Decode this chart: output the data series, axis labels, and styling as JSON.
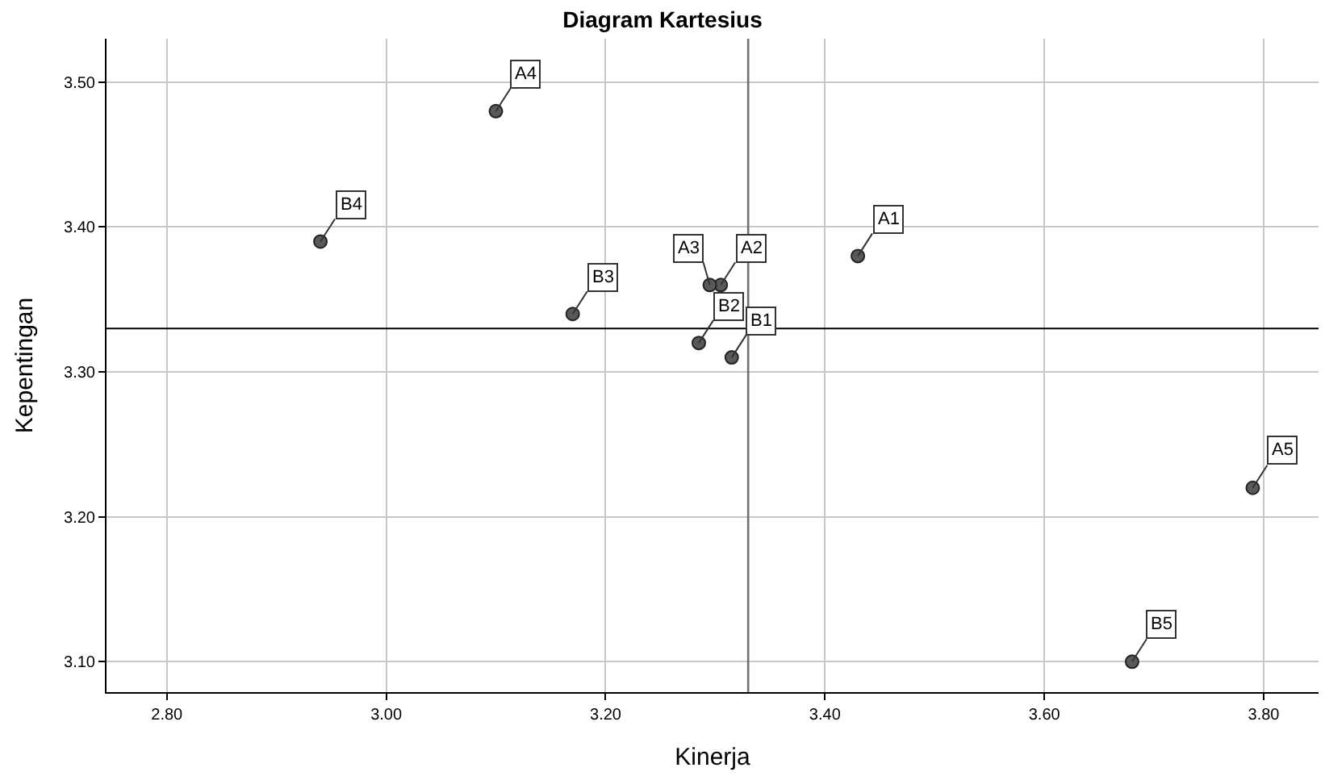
{
  "chart_data": {
    "type": "scatter",
    "title": "Diagram Kartesius",
    "xlabel": "Kinerja",
    "ylabel": "Kepentingan",
    "x": [
      3.43,
      3.305,
      3.295,
      3.1,
      3.79,
      3.315,
      3.285,
      3.17,
      2.94,
      3.68
    ],
    "series": [
      {
        "color": "#595959",
        "values": [
          3.38,
          3.36,
          3.36,
          3.48,
          3.22,
          3.31,
          3.32,
          3.34,
          3.39,
          3.1
        ]
      }
    ],
    "annotations": [
      {
        "text": "A1",
        "x": 3.43,
        "y": 3.38
      },
      {
        "text": "A2",
        "x": 3.305,
        "y": 3.36
      },
      {
        "text": "A3",
        "x": 3.295,
        "y": 3.36
      },
      {
        "text": "A4",
        "x": 3.1,
        "y": 3.48
      },
      {
        "text": "A5",
        "x": 3.79,
        "y": 3.22
      },
      {
        "text": "B1",
        "x": 3.315,
        "y": 3.31
      },
      {
        "text": "B2",
        "x": 3.285,
        "y": 3.32
      },
      {
        "text": "B3",
        "x": 3.17,
        "y": 3.34
      },
      {
        "text": "B4",
        "x": 2.94,
        "y": 3.39
      },
      {
        "text": "B5",
        "x": 3.68,
        "y": 3.1
      }
    ],
    "ref_lines": [
      {
        "axis": "x",
        "value": 3.33,
        "color": "#707070"
      },
      {
        "axis": "y",
        "value": 3.33,
        "color": "#000000"
      }
    ],
    "xlim": [
      2.745,
      3.85
    ],
    "ylim": [
      3.079,
      3.53
    ],
    "xticks": [
      {
        "value": 2.8,
        "label": "2.80"
      },
      {
        "value": 3.0,
        "label": "3.00"
      },
      {
        "value": 3.2,
        "label": "3.20"
      },
      {
        "value": 3.4,
        "label": "3.40"
      },
      {
        "value": 3.6,
        "label": "3.60"
      },
      {
        "value": 3.8,
        "label": "3.80"
      }
    ],
    "yticks": [
      {
        "value": 3.1,
        "label": "3.10"
      },
      {
        "value": 3.2,
        "label": "3.20"
      },
      {
        "value": 3.3,
        "label": "3.30"
      },
      {
        "value": 3.4,
        "label": "3.40"
      },
      {
        "value": 3.5,
        "label": "3.50"
      }
    ],
    "grid": true,
    "marker": "circle"
  }
}
